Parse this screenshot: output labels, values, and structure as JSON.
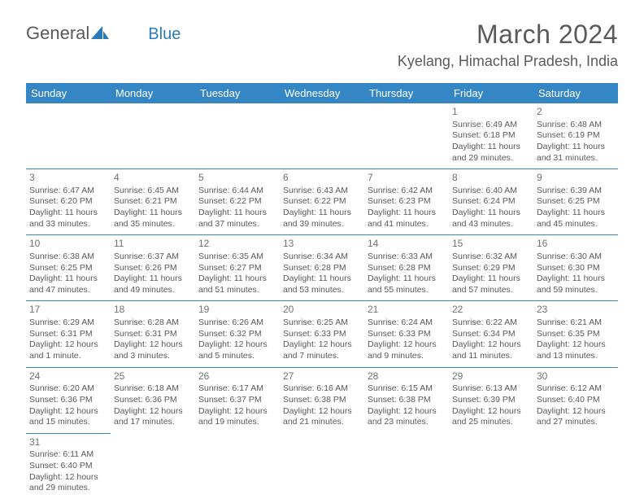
{
  "logo": {
    "part1": "General",
    "part2": "Blue"
  },
  "title": "March 2024",
  "subtitle": "Kyelang, Himachal Pradesh, India",
  "header_bg": "#3586c5",
  "header_fg": "#ffffff",
  "cell_border": "#3586c5",
  "day_headers": [
    "Sunday",
    "Monday",
    "Tuesday",
    "Wednesday",
    "Thursday",
    "Friday",
    "Saturday"
  ],
  "weeks": [
    [
      null,
      null,
      null,
      null,
      null,
      {
        "n": "1",
        "sunrise": "6:49 AM",
        "sunset": "6:18 PM",
        "daylight": "11 hours and 29 minutes."
      },
      {
        "n": "2",
        "sunrise": "6:48 AM",
        "sunset": "6:19 PM",
        "daylight": "11 hours and 31 minutes."
      }
    ],
    [
      {
        "n": "3",
        "sunrise": "6:47 AM",
        "sunset": "6:20 PM",
        "daylight": "11 hours and 33 minutes."
      },
      {
        "n": "4",
        "sunrise": "6:45 AM",
        "sunset": "6:21 PM",
        "daylight": "11 hours and 35 minutes."
      },
      {
        "n": "5",
        "sunrise": "6:44 AM",
        "sunset": "6:22 PM",
        "daylight": "11 hours and 37 minutes."
      },
      {
        "n": "6",
        "sunrise": "6:43 AM",
        "sunset": "6:22 PM",
        "daylight": "11 hours and 39 minutes."
      },
      {
        "n": "7",
        "sunrise": "6:42 AM",
        "sunset": "6:23 PM",
        "daylight": "11 hours and 41 minutes."
      },
      {
        "n": "8",
        "sunrise": "6:40 AM",
        "sunset": "6:24 PM",
        "daylight": "11 hours and 43 minutes."
      },
      {
        "n": "9",
        "sunrise": "6:39 AM",
        "sunset": "6:25 PM",
        "daylight": "11 hours and 45 minutes."
      }
    ],
    [
      {
        "n": "10",
        "sunrise": "6:38 AM",
        "sunset": "6:25 PM",
        "daylight": "11 hours and 47 minutes."
      },
      {
        "n": "11",
        "sunrise": "6:37 AM",
        "sunset": "6:26 PM",
        "daylight": "11 hours and 49 minutes."
      },
      {
        "n": "12",
        "sunrise": "6:35 AM",
        "sunset": "6:27 PM",
        "daylight": "11 hours and 51 minutes."
      },
      {
        "n": "13",
        "sunrise": "6:34 AM",
        "sunset": "6:28 PM",
        "daylight": "11 hours and 53 minutes."
      },
      {
        "n": "14",
        "sunrise": "6:33 AM",
        "sunset": "6:28 PM",
        "daylight": "11 hours and 55 minutes."
      },
      {
        "n": "15",
        "sunrise": "6:32 AM",
        "sunset": "6:29 PM",
        "daylight": "11 hours and 57 minutes."
      },
      {
        "n": "16",
        "sunrise": "6:30 AM",
        "sunset": "6:30 PM",
        "daylight": "11 hours and 59 minutes."
      }
    ],
    [
      {
        "n": "17",
        "sunrise": "6:29 AM",
        "sunset": "6:31 PM",
        "daylight": "12 hours and 1 minute."
      },
      {
        "n": "18",
        "sunrise": "6:28 AM",
        "sunset": "6:31 PM",
        "daylight": "12 hours and 3 minutes."
      },
      {
        "n": "19",
        "sunrise": "6:26 AM",
        "sunset": "6:32 PM",
        "daylight": "12 hours and 5 minutes."
      },
      {
        "n": "20",
        "sunrise": "6:25 AM",
        "sunset": "6:33 PM",
        "daylight": "12 hours and 7 minutes."
      },
      {
        "n": "21",
        "sunrise": "6:24 AM",
        "sunset": "6:33 PM",
        "daylight": "12 hours and 9 minutes."
      },
      {
        "n": "22",
        "sunrise": "6:22 AM",
        "sunset": "6:34 PM",
        "daylight": "12 hours and 11 minutes."
      },
      {
        "n": "23",
        "sunrise": "6:21 AM",
        "sunset": "6:35 PM",
        "daylight": "12 hours and 13 minutes."
      }
    ],
    [
      {
        "n": "24",
        "sunrise": "6:20 AM",
        "sunset": "6:36 PM",
        "daylight": "12 hours and 15 minutes."
      },
      {
        "n": "25",
        "sunrise": "6:18 AM",
        "sunset": "6:36 PM",
        "daylight": "12 hours and 17 minutes."
      },
      {
        "n": "26",
        "sunrise": "6:17 AM",
        "sunset": "6:37 PM",
        "daylight": "12 hours and 19 minutes."
      },
      {
        "n": "27",
        "sunrise": "6:16 AM",
        "sunset": "6:38 PM",
        "daylight": "12 hours and 21 minutes."
      },
      {
        "n": "28",
        "sunrise": "6:15 AM",
        "sunset": "6:38 PM",
        "daylight": "12 hours and 23 minutes."
      },
      {
        "n": "29",
        "sunrise": "6:13 AM",
        "sunset": "6:39 PM",
        "daylight": "12 hours and 25 minutes."
      },
      {
        "n": "30",
        "sunrise": "6:12 AM",
        "sunset": "6:40 PM",
        "daylight": "12 hours and 27 minutes."
      }
    ],
    [
      {
        "n": "31",
        "sunrise": "6:11 AM",
        "sunset": "6:40 PM",
        "daylight": "12 hours and 29 minutes."
      },
      null,
      null,
      null,
      null,
      null,
      null
    ]
  ],
  "labels": {
    "sunrise": "Sunrise:",
    "sunset": "Sunset:",
    "daylight": "Daylight:"
  }
}
